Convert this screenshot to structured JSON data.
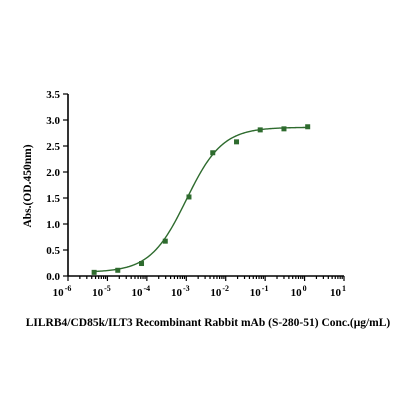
{
  "chart_data": {
    "type": "scatter",
    "title": "",
    "xlabel": "LILRB4/CD85k/ILT3 Recombinant Rabbit mAb (S-280-51) Conc.(μg/mL)",
    "ylabel": "Abs.(OD.450nm)",
    "x_scale": "log10",
    "xlim": [
      1e-06,
      10
    ],
    "ylim": [
      0,
      3.5
    ],
    "x_ticks": [
      {
        "base": "10",
        "exp": "-6",
        "value": 1e-06
      },
      {
        "base": "10",
        "exp": "-5",
        "value": 1e-05
      },
      {
        "base": "10",
        "exp": "-4",
        "value": 0.0001
      },
      {
        "base": "10",
        "exp": "-3",
        "value": 0.001
      },
      {
        "base": "10",
        "exp": "-2",
        "value": 0.01
      },
      {
        "base": "10",
        "exp": "-1",
        "value": 0.1
      },
      {
        "base": "10",
        "exp": "0",
        "value": 1
      },
      {
        "base": "10",
        "exp": "1",
        "value": 10
      }
    ],
    "y_ticks": [
      "0.0",
      "0.5",
      "1.0",
      "1.5",
      "2.0",
      "2.5",
      "3.0",
      "3.5"
    ],
    "grid": false,
    "series": [
      {
        "color": "#2e6b2e",
        "x": [
          4.6e-06,
          1.83e-05,
          7.32e-05,
          0.000293,
          0.00117,
          0.00469,
          0.0188,
          0.075,
          0.3,
          1.2
        ],
        "y": [
          0.07,
          0.11,
          0.24,
          0.67,
          1.52,
          2.37,
          2.58,
          2.81,
          2.83,
          2.87
        ]
      }
    ],
    "fit": {
      "type": "4PL",
      "bottom": 0.07,
      "top": 2.86,
      "log_ec50": -3.0,
      "hill": 0.95
    }
  }
}
